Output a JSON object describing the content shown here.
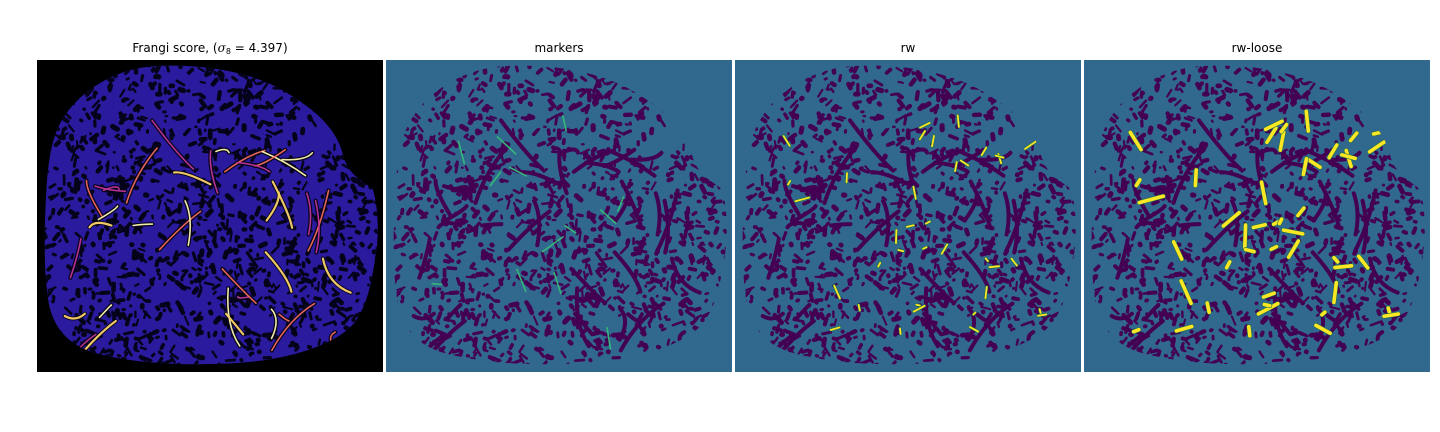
{
  "figure": {
    "panels": [
      {
        "id": "frangi",
        "title_prefix": "Frangi score, (",
        "title_symbol": "σ",
        "title_subscript": "8",
        "title_suffix": " = 4.397)",
        "background": "#000000",
        "tissue_color": "#2a1a9e",
        "pore_color": "#05031a",
        "highlight_colors": [
          "#c0349a",
          "#f06a5c",
          "#fbd26a",
          "#fff7b0"
        ]
      },
      {
        "id": "markers",
        "title": "markers",
        "background": "#31688e",
        "tissue_color": "#31688e",
        "pore_color": "#440154",
        "marker_color": "#35b779"
      },
      {
        "id": "rw",
        "title": "rw",
        "background": "#31688e",
        "tissue_color": "#31688e",
        "pore_color": "#440154",
        "marker_color": "#fde725"
      },
      {
        "id": "rw-loose",
        "title": "rw-loose",
        "background": "#31688e",
        "tissue_color": "#31688e",
        "pore_color": "#440154",
        "marker_color": "#fde725"
      }
    ]
  }
}
